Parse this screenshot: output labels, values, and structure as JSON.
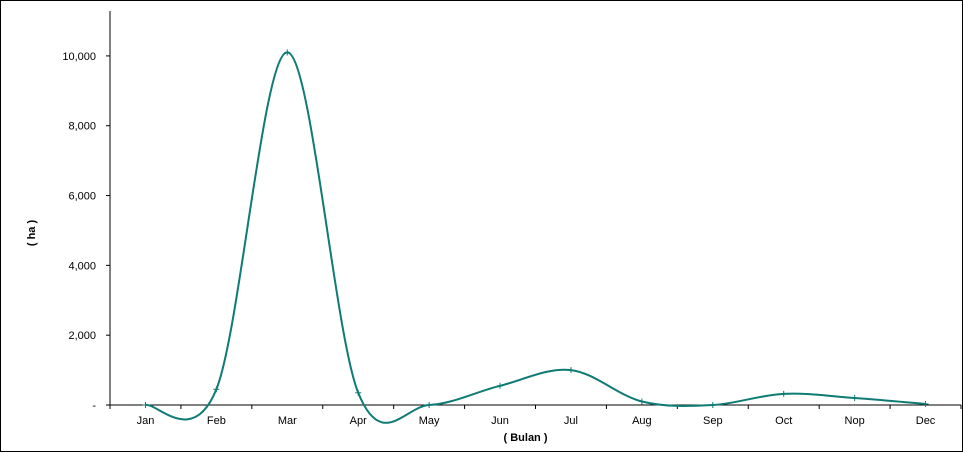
{
  "chart_data": {
    "type": "line",
    "title": "",
    "xlabel": "( Bulan )",
    "ylabel": "( ha )",
    "categories": [
      "Jan",
      "Feb",
      "Mar",
      "Apr",
      "May",
      "Jun",
      "Jul",
      "Aug",
      "Sep",
      "Oct",
      "Nop",
      "Dec"
    ],
    "series": [
      {
        "values": [
          0,
          450,
          10100,
          350,
          0,
          550,
          1000,
          100,
          0,
          320,
          200,
          30
        ],
        "color": "#0e7b74"
      }
    ],
    "ylim": [
      0,
      11000
    ],
    "yticks": [
      0,
      2000,
      4000,
      6000,
      8000,
      10000
    ],
    "ytick_labels": [
      "-",
      "2,000",
      "4,000",
      "6,000",
      "8,000",
      "10,000"
    ],
    "smooth": true,
    "markers": "plus",
    "grid": false,
    "legend": "none"
  }
}
